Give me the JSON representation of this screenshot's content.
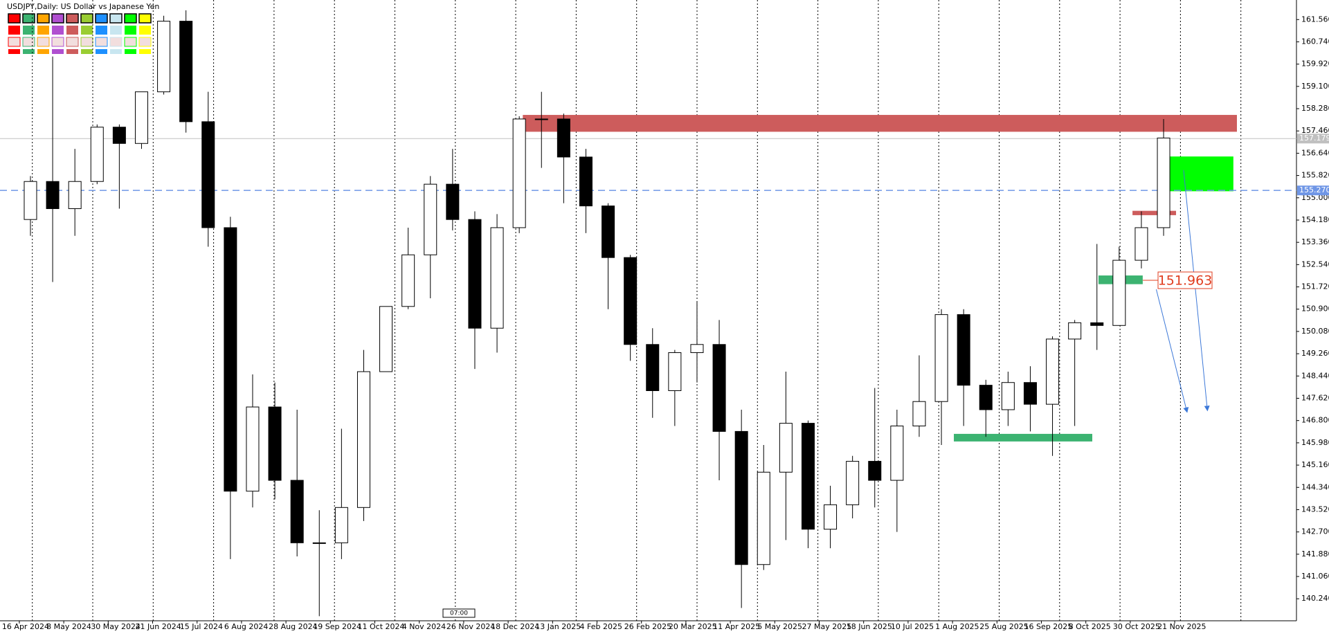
{
  "chart_data": {
    "type": "candlestick",
    "title": "USDJPY,Daily:  US Dollar vs Japanese Yen",
    "open": [
      154.2,
      155.6,
      154.6,
      155.6,
      157.6,
      157.0,
      158.9,
      161.5,
      157.8,
      153.9,
      144.2,
      147.3,
      144.6,
      142.3,
      142.3,
      143.6,
      148.6,
      151.0,
      152.9,
      155.5,
      154.2,
      150.2,
      153.9,
      157.9,
      157.9,
      156.5,
      154.7,
      152.8,
      149.6,
      147.9,
      149.3,
      149.6,
      146.4,
      141.5,
      144.9,
      146.7,
      142.8,
      143.7,
      145.3,
      144.6,
      146.6,
      147.5,
      150.7,
      148.1,
      147.2,
      148.2,
      147.4,
      149.8,
      150.4,
      150.3,
      152.7,
      153.9
    ],
    "high": [
      155.8,
      160.2,
      156.8,
      157.7,
      157.7,
      158.9,
      161.7,
      161.9,
      158.9,
      154.3,
      148.5,
      148.2,
      147.2,
      143.5,
      146.5,
      149.4,
      151.0,
      153.9,
      155.8,
      156.8,
      154.5,
      154.4,
      158.0,
      158.9,
      158.1,
      156.8,
      154.8,
      152.9,
      150.2,
      149.4,
      151.2,
      150.5,
      147.2,
      145.9,
      148.6,
      146.8,
      144.4,
      145.5,
      148.0,
      147.2,
      149.2,
      150.9,
      150.9,
      148.3,
      148.6,
      148.8,
      149.9,
      150.5,
      153.3,
      153.2,
      154.5,
      157.9
    ],
    "low": [
      153.6,
      151.9,
      153.6,
      155.5,
      154.6,
      156.8,
      158.8,
      157.4,
      153.2,
      141.7,
      143.6,
      143.9,
      141.8,
      139.6,
      141.7,
      143.1,
      148.6,
      150.9,
      151.3,
      153.8,
      148.7,
      149.3,
      153.7,
      156.1,
      154.8,
      153.7,
      150.9,
      149.0,
      146.9,
      146.6,
      148.2,
      144.6,
      139.9,
      141.3,
      142.4,
      142.1,
      142.1,
      143.2,
      143.6,
      142.7,
      146.2,
      145.9,
      146.6,
      146.2,
      146.6,
      146.4,
      145.5,
      146.6,
      149.4,
      150.3,
      152.4,
      153.6
    ],
    "close": [
      155.6,
      154.6,
      155.6,
      157.6,
      157.0,
      158.9,
      161.5,
      157.8,
      153.9,
      144.2,
      147.3,
      144.6,
      142.3,
      142.3,
      143.6,
      148.6,
      151.0,
      152.9,
      155.5,
      154.2,
      150.2,
      153.9,
      157.9,
      157.9,
      156.5,
      154.7,
      152.8,
      149.6,
      147.9,
      149.3,
      149.6,
      146.4,
      141.5,
      144.9,
      146.7,
      142.8,
      143.7,
      145.3,
      144.6,
      146.6,
      147.5,
      150.7,
      148.1,
      147.2,
      148.2,
      147.4,
      149.8,
      150.4,
      150.3,
      152.7,
      153.9,
      157.2
    ],
    "xlim": [
      -0.87,
      57.48
    ],
    "xticks": [
      {
        "value": 0,
        "label": "16 Apr 2024"
      },
      {
        "value": 2,
        "label": "8 May 2024"
      },
      {
        "value": 4,
        "label": "30 May 2024"
      },
      {
        "value": 6,
        "label": "21 Jun 2024"
      },
      {
        "value": 8,
        "label": "15 Jul 2024"
      },
      {
        "value": 10,
        "label": "6 Aug 2024"
      },
      {
        "value": 12,
        "label": "28 Aug 2024"
      },
      {
        "value": 14,
        "label": "19 Sep 2024"
      },
      {
        "value": 16,
        "label": "11 Oct 2024"
      },
      {
        "value": 18,
        "label": "4 Nov 2024"
      },
      {
        "value": 20,
        "label": "26 Nov 2024"
      },
      {
        "value": 22,
        "label": "18 Dec 2024"
      },
      {
        "value": 24,
        "label": "13 Jan 2025"
      },
      {
        "value": 26,
        "label": "4 Feb 2025"
      },
      {
        "value": 28,
        "label": "26 Feb 2025"
      },
      {
        "value": 30,
        "label": "20 Mar 2025"
      },
      {
        "value": 32,
        "label": "11 Apr 2025"
      },
      {
        "value": 34,
        "label": "5 May 2025"
      },
      {
        "value": 36,
        "label": "27 May 2025"
      },
      {
        "value": 38,
        "label": "18 Jun 2025"
      },
      {
        "value": 40,
        "label": "10 Jul 2025"
      },
      {
        "value": 42,
        "label": "1 Aug 2025"
      },
      {
        "value": 44,
        "label": "25 Aug 2025"
      },
      {
        "value": 46,
        "label": "16 Sep 2025"
      },
      {
        "value": 48,
        "label": "8 Oct 2025"
      },
      {
        "value": 50,
        "label": "30 Oct 2025"
      },
      {
        "value": 52,
        "label": "21 Nov 2025"
      }
    ],
    "ylim": [
      139.43,
      162.28
    ],
    "yticks": [
      {
        "value": 161.56,
        "label": "161.560"
      },
      {
        "value": 160.74,
        "label": "160.740"
      },
      {
        "value": 159.92,
        "label": "159.920"
      },
      {
        "value": 159.1,
        "label": "159.100"
      },
      {
        "value": 158.28,
        "label": "158.280"
      },
      {
        "value": 157.46,
        "label": "157.460"
      },
      {
        "value": 156.64,
        "label": "156.640"
      },
      {
        "value": 155.82,
        "label": "155.820"
      },
      {
        "value": 155,
        "label": "155.000"
      },
      {
        "value": 154.18,
        "label": "154.180"
      },
      {
        "value": 153.36,
        "label": "153.360"
      },
      {
        "value": 152.54,
        "label": "152.540"
      },
      {
        "value": 151.72,
        "label": "151.720"
      },
      {
        "value": 150.9,
        "label": "150.900"
      },
      {
        "value": 150.08,
        "label": "150.080"
      },
      {
        "value": 149.26,
        "label": "149.260"
      },
      {
        "value": 148.44,
        "label": "148.440"
      },
      {
        "value": 147.62,
        "label": "147.620"
      },
      {
        "value": 146.8,
        "label": "146.800"
      },
      {
        "value": 145.98,
        "label": "145.980"
      },
      {
        "value": 145.16,
        "label": "145.160"
      },
      {
        "value": 144.34,
        "label": "144.340"
      },
      {
        "value": 143.52,
        "label": "143.520"
      },
      {
        "value": 142.7,
        "label": "142.700"
      },
      {
        "value": 141.88,
        "label": "141.880"
      },
      {
        "value": 141.06,
        "label": "141.060"
      },
      {
        "value": 140.24,
        "label": "140.240"
      }
    ],
    "hlines": [
      {
        "value": 157.179,
        "color": "#c0c0c0",
        "dashed": false
      },
      {
        "value": 155.27,
        "label": "155.270",
        "color": "#6f96e6",
        "dashed": true
      }
    ],
    "zones": [
      {
        "x": [
          22.66,
          54.8
        ],
        "y": [
          157.43,
          158.05
        ],
        "color": "#cd5c5c"
      },
      {
        "x": [
          51.43,
          54.64
        ],
        "y": [
          155.24,
          156.52
        ],
        "color": "#00ff00"
      },
      {
        "x": [
          50.1,
          52.06
        ],
        "y": [
          154.36,
          154.52
        ],
        "color": "#cd5c5c"
      },
      {
        "x": [
          48.57,
          50.56
        ],
        "y": [
          151.82,
          152.14
        ],
        "color": "#3cb371"
      },
      {
        "x": [
          42.06,
          48.29
        ],
        "y": [
          146.03,
          146.31
        ],
        "color": "#3cb371"
      }
    ],
    "arrows": [
      {
        "x": [
          51.17,
          52.55
        ],
        "y": [
          151.63,
          147.13
        ],
        "color": "#3c78d8"
      },
      {
        "x": [
          52.4,
          53.47
        ],
        "y": [
          156.02,
          147.19
        ],
        "color": "#3c78d8"
      }
    ],
    "annotations": [
      {
        "value": 151.963,
        "x": 51.25,
        "color": "#e03c1e"
      }
    ],
    "time_label": "07:00"
  }
}
